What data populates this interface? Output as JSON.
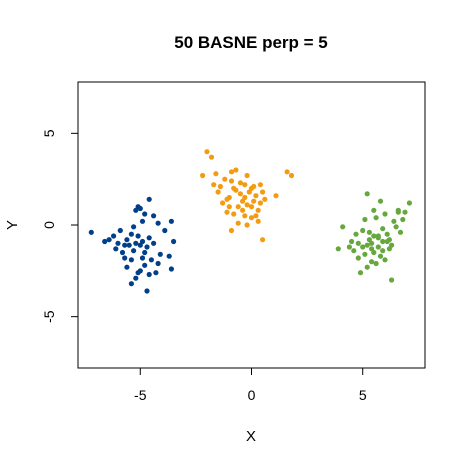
{
  "chart_data": {
    "type": "scatter",
    "title": "50 BASNE perp = 5",
    "xlabel": "X",
    "ylabel": "Y",
    "xlim": [
      -7.8,
      7.8
    ],
    "ylim": [
      -7.8,
      7.8
    ],
    "xticks": [
      -5,
      0,
      5
    ],
    "yticks": [
      -5,
      0,
      5
    ],
    "grid": false,
    "legend": "none",
    "series": [
      {
        "color": "#003f8c",
        "points": [
          [
            -7.2,
            -0.4
          ],
          [
            -6.6,
            -0.9
          ],
          [
            -6.4,
            -0.8
          ],
          [
            -6.2,
            -0.6
          ],
          [
            -6.1,
            -1.3
          ],
          [
            -5.9,
            -0.3
          ],
          [
            -5.8,
            -1.5
          ],
          [
            -5.6,
            -0.8
          ],
          [
            -5.4,
            -1.9
          ],
          [
            -5.3,
            -0.1
          ],
          [
            -5.2,
            0.8
          ],
          [
            -5.1,
            1.0
          ],
          [
            -5.0,
            0.9
          ],
          [
            -4.9,
            0.2
          ],
          [
            -4.8,
            0.6
          ],
          [
            -4.6,
            1.4
          ],
          [
            -4.4,
            0.5
          ],
          [
            -4.2,
            0.1
          ],
          [
            -3.9,
            -0.3
          ],
          [
            -3.6,
            0.2
          ],
          [
            -3.5,
            -0.9
          ],
          [
            -3.7,
            -1.7
          ],
          [
            -3.6,
            -2.4
          ],
          [
            -4.1,
            -1.6
          ],
          [
            -4.2,
            -2.1
          ],
          [
            -4.4,
            -1.0
          ],
          [
            -4.6,
            -0.7
          ],
          [
            -4.7,
            -1.2
          ],
          [
            -4.8,
            -1.5
          ],
          [
            -4.9,
            -0.9
          ],
          [
            -5.0,
            -1.1
          ],
          [
            -5.1,
            -0.6
          ],
          [
            -5.2,
            -1.0
          ],
          [
            -5.3,
            -1.4
          ],
          [
            -5.4,
            -0.5
          ],
          [
            -5.5,
            -1.1
          ],
          [
            -5.6,
            -2.3
          ],
          [
            -5.7,
            -1.8
          ],
          [
            -5.0,
            -2.5
          ],
          [
            -5.1,
            -2.6
          ],
          [
            -4.8,
            -2.2
          ],
          [
            -4.6,
            -2.7
          ],
          [
            -5.4,
            -3.2
          ],
          [
            -5.2,
            -2.9
          ],
          [
            -4.9,
            -1.8
          ],
          [
            -4.5,
            -1.9
          ],
          [
            -4.3,
            -2.6
          ],
          [
            -4.7,
            -3.6
          ],
          [
            -6.0,
            -1.0
          ],
          [
            -5.7,
            -1.1
          ]
        ]
      },
      {
        "color": "#f39c12",
        "points": [
          [
            -2.2,
            2.7
          ],
          [
            -2.0,
            4.0
          ],
          [
            -1.8,
            3.7
          ],
          [
            -1.6,
            2.8
          ],
          [
            -1.7,
            2.2
          ],
          [
            -1.5,
            1.8
          ],
          [
            -1.3,
            1.2
          ],
          [
            -1.2,
            2.5
          ],
          [
            -1.1,
            0.7
          ],
          [
            -1.0,
            1.5
          ],
          [
            -0.9,
            2.9
          ],
          [
            -0.8,
            2.0
          ],
          [
            -0.7,
            3.0
          ],
          [
            -0.6,
            1.0
          ],
          [
            -0.5,
            2.3
          ],
          [
            -0.4,
            1.3
          ],
          [
            -0.3,
            0.5
          ],
          [
            -0.2,
            2.7
          ],
          [
            -0.1,
            1.8
          ],
          [
            0.0,
            1.0
          ],
          [
            0.1,
            2.1
          ],
          [
            0.2,
            1.6
          ],
          [
            0.3,
            0.2
          ],
          [
            0.4,
            1.2
          ],
          [
            0.5,
            -0.8
          ],
          [
            0.3,
            0.8
          ],
          [
            -0.2,
            0.0
          ],
          [
            -0.6,
            0.1
          ],
          [
            -0.9,
            -0.3
          ],
          [
            -0.4,
            0.8
          ],
          [
            0.1,
            1.3
          ],
          [
            0.0,
            2.0
          ],
          [
            -0.3,
            1.5
          ],
          [
            0.2,
            0.5
          ],
          [
            0.5,
            1.8
          ],
          [
            1.1,
            1.6
          ],
          [
            1.6,
            2.9
          ],
          [
            1.8,
            2.7
          ],
          [
            -1.0,
            1.0
          ],
          [
            -1.4,
            2.1
          ],
          [
            -0.8,
            0.6
          ],
          [
            0.0,
            0.4
          ],
          [
            -0.5,
            1.7
          ],
          [
            0.4,
            2.2
          ],
          [
            -1.1,
            1.4
          ],
          [
            -0.7,
            1.9
          ],
          [
            -0.2,
            1.1
          ],
          [
            0.6,
            1.4
          ],
          [
            -0.9,
            2.4
          ],
          [
            -0.3,
            2.2
          ]
        ]
      },
      {
        "color": "#66a83d",
        "points": [
          [
            3.9,
            -1.3
          ],
          [
            4.1,
            -0.1
          ],
          [
            4.5,
            -0.9
          ],
          [
            4.7,
            -0.5
          ],
          [
            4.8,
            -1.8
          ],
          [
            4.9,
            -2.6
          ],
          [
            5.0,
            -1.2
          ],
          [
            5.1,
            0.3
          ],
          [
            5.2,
            1.7
          ],
          [
            5.3,
            -0.8
          ],
          [
            5.4,
            -1.0
          ],
          [
            5.5,
            0.8
          ],
          [
            5.6,
            0.4
          ],
          [
            5.7,
            -0.6
          ],
          [
            5.8,
            1.3
          ],
          [
            5.9,
            -0.2
          ],
          [
            6.0,
            0.6
          ],
          [
            6.1,
            -0.9
          ],
          [
            6.2,
            -1.3
          ],
          [
            6.3,
            -3.0
          ],
          [
            6.4,
            0.2
          ],
          [
            6.6,
            0.8
          ],
          [
            6.7,
            -0.4
          ],
          [
            6.9,
            0.7
          ],
          [
            7.1,
            1.2
          ],
          [
            4.6,
            -1.4
          ],
          [
            5.2,
            -1.1
          ],
          [
            5.5,
            -1.5
          ],
          [
            5.8,
            -1.7
          ],
          [
            6.0,
            -1.9
          ],
          [
            5.4,
            -2.0
          ],
          [
            5.1,
            -1.6
          ],
          [
            5.7,
            -1.2
          ],
          [
            5.9,
            -0.9
          ],
          [
            6.2,
            -0.8
          ],
          [
            5.3,
            -0.4
          ],
          [
            5.0,
            -0.3
          ],
          [
            6.5,
            -0.1
          ],
          [
            6.8,
            0.3
          ],
          [
            5.6,
            -2.1
          ],
          [
            5.2,
            -2.3
          ],
          [
            4.8,
            -1.0
          ],
          [
            6.1,
            -0.5
          ],
          [
            5.7,
            -0.7
          ],
          [
            5.4,
            -1.3
          ],
          [
            6.3,
            -1.1
          ],
          [
            5.9,
            -1.4
          ],
          [
            4.4,
            -1.2
          ],
          [
            6.6,
            0.7
          ],
          [
            5.5,
            -0.6
          ]
        ]
      }
    ]
  }
}
